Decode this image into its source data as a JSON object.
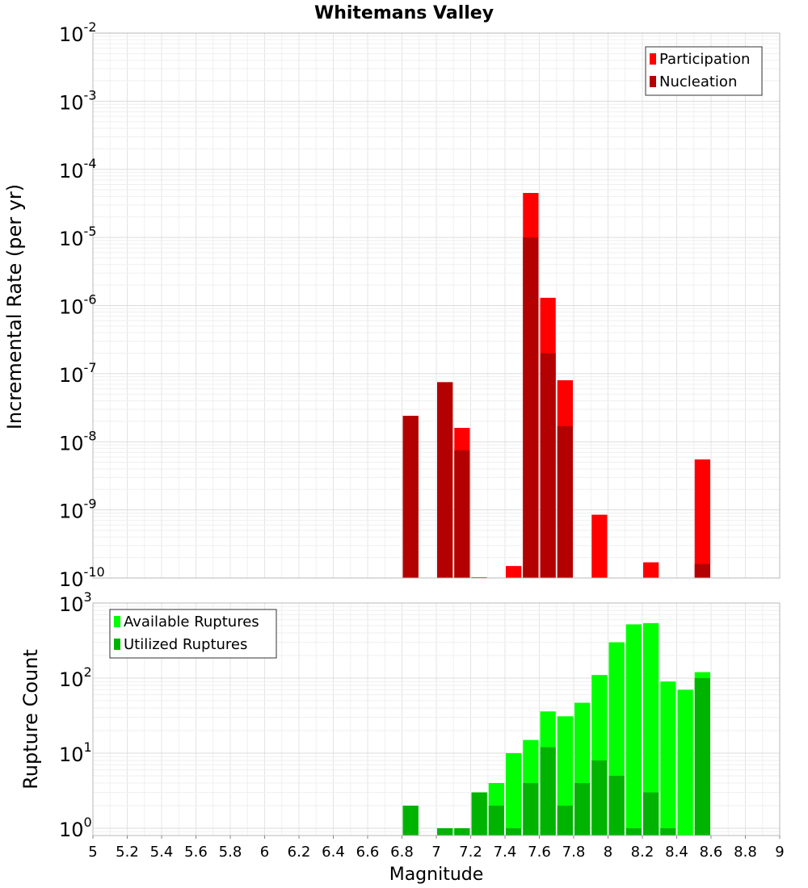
{
  "chart_data": [
    {
      "type": "bar",
      "title": "Whitemans Valley",
      "ylabel": "Incremental Rate (per yr)",
      "xlabel": "",
      "yscale": "log",
      "ylim": [
        1e-10,
        0.01
      ],
      "xlim": [
        5,
        9
      ],
      "legend_position": "top-right",
      "grid": true,
      "bar_width": 0.1,
      "series": [
        {
          "name": "Participation",
          "color": "#ff0000",
          "x": [
            6.85,
            7.05,
            7.15,
            7.25,
            7.45,
            7.55,
            7.65,
            7.75,
            7.95,
            8.25,
            8.55
          ],
          "values": [
            2.4e-08,
            7.5e-08,
            1.6e-08,
            1e-10,
            1.5e-10,
            4.5e-05,
            1.3e-06,
            8e-08,
            8.5e-10,
            1.7e-10,
            5.5e-09
          ]
        },
        {
          "name": "Nucleation",
          "color": "#b30000",
          "x": [
            6.85,
            7.05,
            7.15,
            7.55,
            7.65,
            7.75,
            8.55
          ],
          "values": [
            2.4e-08,
            7.5e-08,
            7.5e-09,
            1e-05,
            2e-07,
            1.7e-08,
            1.6e-10
          ]
        }
      ]
    },
    {
      "type": "bar",
      "title": "",
      "ylabel": "Rupture Count",
      "xlabel": "Magnitude",
      "yscale": "log",
      "ylim": [
        0.8,
        1000
      ],
      "xlim": [
        5,
        9
      ],
      "xticks": [
        "5",
        "5.2",
        "5.4",
        "5.6",
        "5.8",
        "6",
        "6.2",
        "6.4",
        "6.6",
        "6.8",
        "7",
        "7.2",
        "7.4",
        "7.6",
        "7.8",
        "8",
        "8.2",
        "8.4",
        "8.6",
        "8.8",
        "9"
      ],
      "legend_position": "top-left",
      "grid": true,
      "bar_width": 0.1,
      "series": [
        {
          "name": "Available Ruptures",
          "color": "#00ff00",
          "x": [
            6.85,
            7.05,
            7.15,
            7.25,
            7.35,
            7.45,
            7.55,
            7.65,
            7.75,
            7.85,
            7.95,
            8.05,
            8.15,
            8.25,
            8.35,
            8.45,
            8.55
          ],
          "values": [
            2,
            1,
            1,
            3,
            4,
            10,
            15,
            36,
            31,
            47,
            110,
            300,
            520,
            540,
            90,
            70,
            120
          ]
        },
        {
          "name": "Utilized Ruptures",
          "color": "#00b300",
          "x": [
            6.85,
            7.05,
            7.15,
            7.25,
            7.35,
            7.45,
            7.55,
            7.65,
            7.75,
            7.85,
            7.95,
            8.05,
            8.15,
            8.25,
            8.35,
            8.55
          ],
          "values": [
            2,
            1,
            1,
            3,
            2,
            1,
            4,
            12,
            2,
            4,
            8,
            5,
            1,
            3,
            1,
            100
          ]
        }
      ]
    }
  ]
}
